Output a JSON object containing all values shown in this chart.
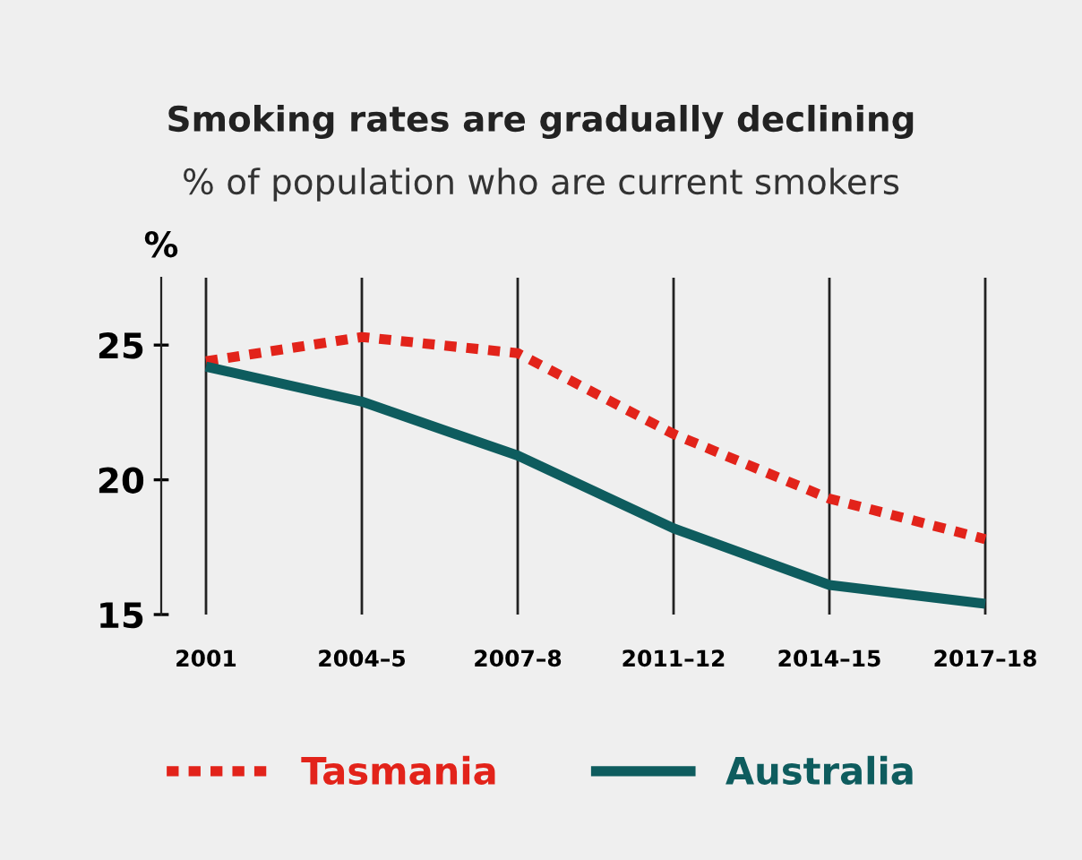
{
  "chart_data": {
    "type": "line",
    "title": "Smoking rates are gradually declining",
    "subtitle": "% of population who are current smokers",
    "ylabel": "%",
    "categories": [
      "2001",
      "2004–5",
      "2007–8",
      "2011–12",
      "2014–15",
      "2017–18"
    ],
    "series": [
      {
        "name": "Tasmania",
        "color": "#e2231a",
        "line_style": "dotted",
        "values": [
          24.4,
          25.3,
          24.7,
          21.7,
          19.3,
          17.8
        ]
      },
      {
        "name": "Australia",
        "color": "#0e5c5e",
        "line_style": "solid",
        "values": [
          24.2,
          22.9,
          20.9,
          18.2,
          16.1,
          15.4
        ]
      }
    ],
    "ylim": [
      15,
      27.5
    ],
    "yticks": [
      15,
      20,
      25
    ],
    "grid": "x",
    "legend": "bottom",
    "marker": "none"
  }
}
